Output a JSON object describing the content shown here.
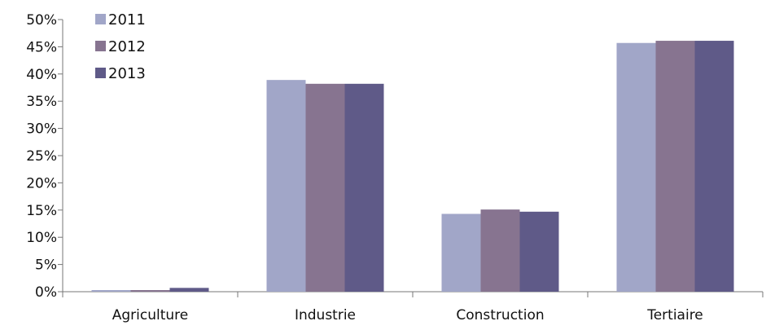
{
  "chart_data": {
    "type": "bar",
    "title": "",
    "xlabel": "",
    "ylabel": "",
    "categories": [
      "Agriculture",
      "Industrie",
      "Construction",
      "Tertiaire"
    ],
    "series": [
      {
        "name": "2011",
        "values": [
          0.3,
          38.9,
          14.3,
          45.7
        ],
        "color": "#A1A6C8"
      },
      {
        "name": "2012",
        "values": [
          0.3,
          38.2,
          15.1,
          46.1
        ],
        "color": "#877490"
      },
      {
        "name": "2013",
        "values": [
          0.7,
          38.2,
          14.7,
          46.1
        ],
        "color": "#5F5A88"
      }
    ],
    "ylim": [
      0,
      50
    ],
    "yticks": [
      "0%",
      "5%",
      "10%",
      "15%",
      "20%",
      "25%",
      "30%",
      "35%",
      "40%",
      "45%",
      "50%"
    ],
    "ytick_values": [
      0,
      5,
      10,
      15,
      20,
      25,
      30,
      35,
      40,
      45,
      50
    ],
    "grid": false,
    "legend": "top-left",
    "legend_entries": [
      "2011",
      "2012",
      "2013"
    ]
  }
}
